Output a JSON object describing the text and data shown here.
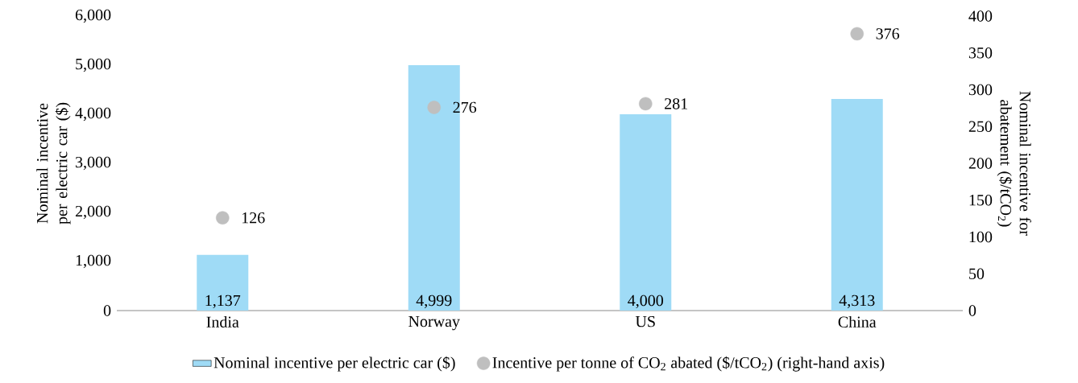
{
  "chart_data": {
    "type": "bar",
    "ylabel": "Nominal incentive per electric car ($)",
    "y2label": "Nominal incentive for abatement ($/tCO$_{2}$)",
    "categories": [
      "India",
      "Norway",
      "US",
      "China"
    ],
    "series": [
      {
        "name": "Nominal incentive per electric car ($)",
        "color": "#9fdbf6",
        "values": [
          1137,
          4999,
          4000,
          4313
        ],
        "value_labels": [
          "1,137",
          "4,999",
          "4,000",
          "4,313"
        ]
      },
      {
        "name": "Incentive per tonne of CO$_{2}$ abated ($/tCO$_{2}$) (right-hand axis)",
        "type": "scatter",
        "axis": "y2",
        "color": "#bfbfbf",
        "values": [
          126,
          276,
          281,
          376
        ],
        "value_labels": [
          "126",
          "276",
          "281",
          "376"
        ]
      }
    ],
    "ylim": [
      0,
      6000
    ],
    "yticks": [
      0,
      {
        "value": 1000,
        "label": "1,000"
      },
      {
        "value": 2000,
        "label": "2,000"
      },
      {
        "value": 3000,
        "label": "3,000"
      },
      {
        "value": 4000,
        "label": "4,000"
      },
      {
        "value": 5000,
        "label": "5,000"
      },
      {
        "value": 6000,
        "label": "6,000"
      }
    ],
    "y2lim": [
      0,
      400
    ],
    "y2ticks": [
      0,
      50,
      100,
      150,
      200,
      250,
      300,
      350,
      400
    ],
    "legend": "bottom"
  }
}
